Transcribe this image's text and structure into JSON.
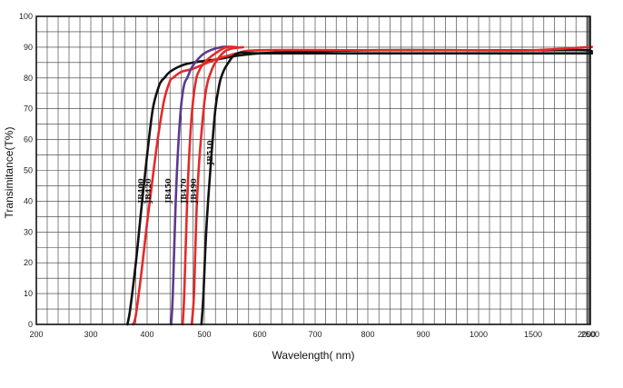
{
  "chart_data": {
    "type": "line",
    "title": "",
    "xlabel": "Wavelength( nm)",
    "ylabel": "Transimitance(T%)",
    "ylim": [
      0,
      100
    ],
    "y_ticks": [
      "0",
      "10",
      "20",
      "30",
      "40",
      "50",
      "60",
      "70",
      "80",
      "90",
      "100"
    ],
    "x_ticks": [
      200,
      300,
      400,
      500,
      600,
      700,
      800,
      900,
      1000,
      1500,
      2000,
      2500
    ],
    "x_tick_labels": [
      "200",
      "300",
      "400",
      "500",
      "600",
      "700",
      "800",
      "900",
      "1000",
      "1500",
      "2000",
      "2500"
    ],
    "grid": true,
    "legend": "none",
    "series": [
      {
        "name": "JB400",
        "color": "#111111",
        "x": [
          365,
          370,
          380,
          390,
          400,
          410,
          420,
          425,
          430,
          440,
          460,
          480,
          520,
          600,
          800,
          1000,
          1500,
          2000,
          2500
        ],
        "y": [
          0,
          5,
          20,
          38,
          55,
          70,
          77,
          79,
          80,
          82,
          84,
          85,
          86,
          88,
          89,
          89,
          89,
          89,
          88
        ]
      },
      {
        "name": "JB420",
        "color": "#e32a2a",
        "x": [
          375,
          380,
          390,
          400,
          410,
          420,
          430,
          440,
          445,
          460,
          480,
          520,
          560,
          600,
          800,
          1000,
          1500,
          2000,
          2500
        ],
        "y": [
          0,
          3,
          17,
          33,
          48,
          62,
          73,
          79,
          80,
          82,
          83,
          86,
          88,
          89,
          89,
          89,
          89,
          90,
          90
        ]
      },
      {
        "name": "JB450",
        "color": "#5b3a8e",
        "x": [
          442,
          445,
          450,
          455,
          460,
          465,
          470,
          480,
          500,
          530,
          550
        ],
        "y": [
          0,
          10,
          40,
          60,
          72,
          78,
          80,
          84,
          88,
          90,
          90
        ]
      },
      {
        "name": "JB470",
        "color": "#e32a2a",
        "x": [
          462,
          465,
          470,
          475,
          480,
          485,
          490,
          500,
          520,
          540,
          560
        ],
        "y": [
          0,
          10,
          40,
          60,
          72,
          79,
          82,
          85,
          88,
          90,
          90
        ]
      },
      {
        "name": "JB490",
        "color": "#e32a2a",
        "x": [
          478,
          482,
          486,
          490,
          495,
          500,
          505,
          510,
          520,
          540,
          570
        ],
        "y": [
          0,
          10,
          35,
          50,
          62,
          72,
          78,
          81,
          85,
          89,
          90
        ]
      },
      {
        "name": "JB510",
        "color": "#111111",
        "x": [
          495,
          498,
          502,
          506,
          510,
          515,
          520,
          525,
          530,
          540,
          560,
          600,
          800,
          1000,
          1500,
          2000,
          2500
        ],
        "y": [
          0,
          8,
          25,
          38,
          48,
          60,
          70,
          76,
          80,
          84,
          88,
          88,
          88,
          88,
          88,
          88,
          88
        ]
      }
    ]
  }
}
